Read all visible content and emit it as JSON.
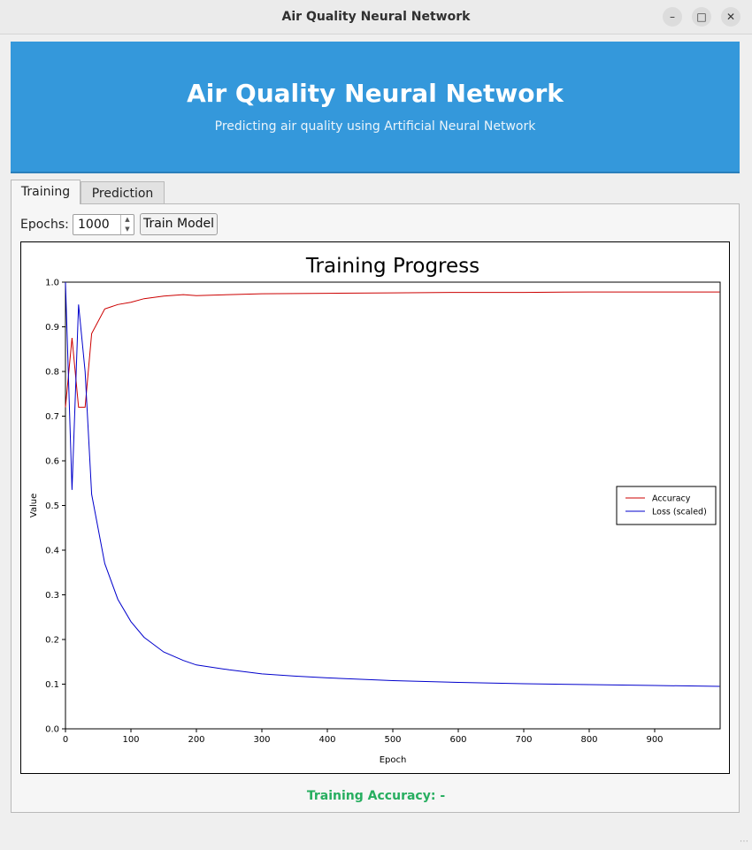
{
  "window": {
    "title": "Air Quality Neural Network"
  },
  "banner": {
    "title": "Air Quality Neural Network",
    "subtitle": "Predicting air quality using Artificial Neural Network",
    "color": "#3498db"
  },
  "tabs": [
    {
      "label": "Training",
      "active": true
    },
    {
      "label": "Prediction",
      "active": false
    }
  ],
  "training": {
    "epochs_label": "Epochs:",
    "epochs_value": "1000",
    "train_button": "Train Model",
    "status_text": "Training Accuracy: -",
    "status_color": "#27ae60"
  },
  "chart_data": {
    "type": "line",
    "title": "Training Progress",
    "xlabel": "Epoch",
    "ylabel": "Value",
    "xlim": [
      0,
      1000
    ],
    "ylim": [
      0,
      1.0
    ],
    "xticks": [
      "0",
      "100",
      "200",
      "300",
      "400",
      "500",
      "600",
      "700",
      "800",
      "900"
    ],
    "yticks": [
      "0.0",
      "0.1",
      "0.2",
      "0.3",
      "0.4",
      "0.5",
      "0.6",
      "0.7",
      "0.8",
      "0.9",
      "1.0"
    ],
    "grid": false,
    "legend_position": "center-right",
    "series": [
      {
        "name": "Accuracy",
        "color": "#cc0000",
        "x": [
          0,
          10,
          20,
          30,
          40,
          60,
          80,
          100,
          120,
          150,
          180,
          200,
          250,
          300,
          400,
          500,
          600,
          700,
          800,
          900,
          999
        ],
        "y": [
          0.72,
          0.875,
          0.72,
          0.72,
          0.885,
          0.94,
          0.95,
          0.955,
          0.963,
          0.969,
          0.972,
          0.97,
          0.972,
          0.974,
          0.975,
          0.976,
          0.977,
          0.977,
          0.978,
          0.978,
          0.978
        ]
      },
      {
        "name": "Loss (scaled)",
        "color": "#0000cc",
        "x": [
          0,
          10,
          20,
          30,
          40,
          60,
          80,
          100,
          120,
          150,
          180,
          200,
          250,
          300,
          350,
          400,
          500,
          600,
          700,
          800,
          900,
          999
        ],
        "y": [
          1.0,
          0.535,
          0.95,
          0.8,
          0.525,
          0.37,
          0.29,
          0.24,
          0.205,
          0.172,
          0.153,
          0.143,
          0.132,
          0.123,
          0.118,
          0.114,
          0.108,
          0.104,
          0.101,
          0.099,
          0.097,
          0.095
        ]
      }
    ]
  }
}
